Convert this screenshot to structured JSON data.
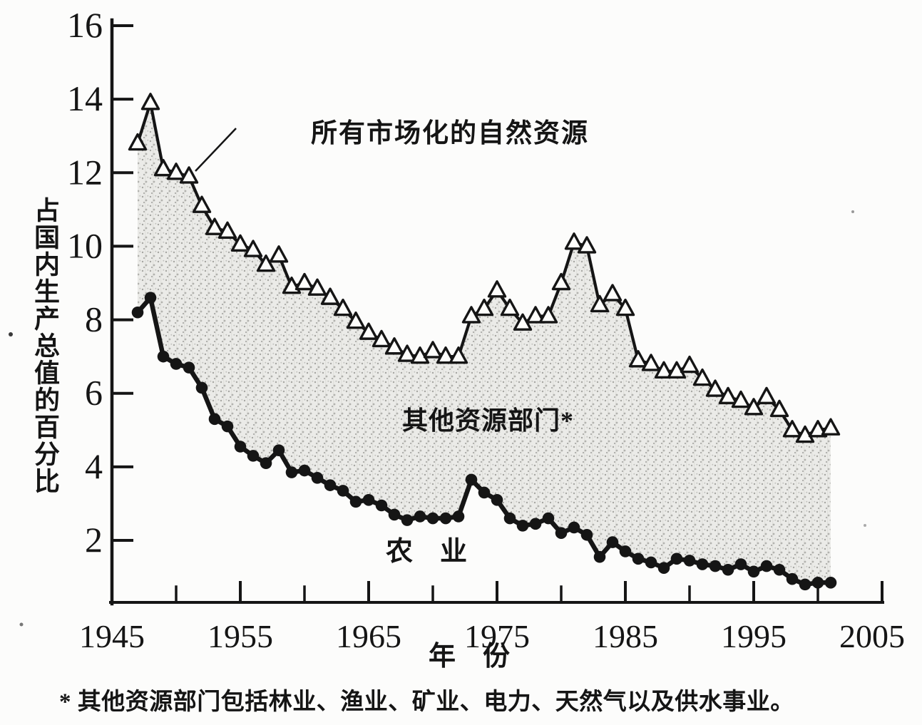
{
  "labels": {
    "annotation_all_resources": "所有市场化的自然资源",
    "other_sectors": "其他资源部门*",
    "agriculture": "农　业",
    "x_axis": "年　份",
    "y_axis": "占国内生产总值的百分比",
    "footnote": "* 其他资源部门包括林业、渔业、矿业、电力、天然气以及供水事业。"
  },
  "chart_data": {
    "type": "line",
    "title": "所有市场化的自然资源",
    "xlabel": "年份",
    "ylabel": "占国内生产总值的百分比",
    "footnote": "* 其他资源部门包括林业、渔业、矿业、电力、天然气以及供水事业。",
    "xlim": [
      1945,
      2005
    ],
    "ylim": [
      0.3,
      16
    ],
    "x_major_ticks": [
      1945,
      1955,
      1965,
      1975,
      1985,
      1995,
      2005
    ],
    "x_minor_step": 5,
    "y_ticks": [
      2,
      4,
      6,
      8,
      10,
      12,
      14,
      16
    ],
    "grid": false,
    "legend": "inline-annotations",
    "years": [
      1947,
      1948,
      1949,
      1950,
      1951,
      1952,
      1953,
      1954,
      1955,
      1956,
      1957,
      1958,
      1959,
      1960,
      1961,
      1962,
      1963,
      1964,
      1965,
      1966,
      1967,
      1968,
      1969,
      1970,
      1971,
      1972,
      1973,
      1974,
      1975,
      1976,
      1977,
      1978,
      1979,
      1980,
      1981,
      1982,
      1983,
      1984,
      1985,
      1986,
      1987,
      1988,
      1989,
      1990,
      1991,
      1992,
      1993,
      1994,
      1995,
      1996,
      1997,
      1998,
      1999,
      2000,
      2001
    ],
    "series": [
      {
        "name": "所有市场化的自然资源",
        "marker": "open-triangle",
        "values": [
          12.8,
          13.9,
          12.1,
          12.0,
          11.9,
          11.1,
          10.5,
          10.4,
          10.05,
          9.9,
          9.5,
          9.75,
          8.9,
          9.0,
          8.85,
          8.6,
          8.3,
          7.95,
          7.65,
          7.45,
          7.25,
          7.05,
          7.0,
          7.15,
          7.0,
          7.0,
          8.1,
          8.3,
          8.8,
          8.3,
          7.9,
          8.1,
          8.1,
          9.0,
          10.1,
          10.0,
          8.4,
          8.7,
          8.3,
          6.9,
          6.8,
          6.6,
          6.6,
          6.75,
          6.4,
          6.1,
          5.9,
          5.8,
          5.6,
          5.9,
          5.55,
          5.0,
          4.85,
          5.0,
          5.05
        ]
      },
      {
        "name": "农业",
        "marker": "filled-circle",
        "values": [
          8.2,
          8.6,
          7.0,
          6.8,
          6.7,
          6.15,
          5.3,
          5.1,
          4.55,
          4.3,
          4.1,
          4.45,
          3.85,
          3.9,
          3.7,
          3.5,
          3.35,
          3.05,
          3.1,
          2.95,
          2.7,
          2.55,
          2.65,
          2.6,
          2.6,
          2.65,
          3.65,
          3.3,
          3.1,
          2.6,
          2.4,
          2.45,
          2.6,
          2.2,
          2.35,
          2.15,
          1.55,
          1.95,
          1.7,
          1.5,
          1.4,
          1.25,
          1.5,
          1.45,
          1.35,
          1.3,
          1.2,
          1.35,
          1.15,
          1.3,
          1.2,
          0.95,
          0.8,
          0.85,
          0.85
        ]
      }
    ],
    "shaded_band": {
      "label": "其他资源部门*",
      "between": [
        "所有市场化的自然资源",
        "农业"
      ],
      "style": "gray-stipple"
    }
  }
}
